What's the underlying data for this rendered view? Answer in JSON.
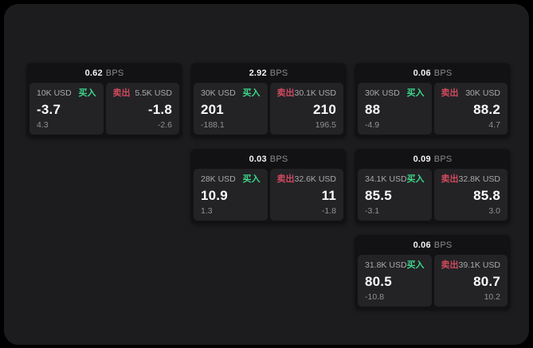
{
  "colors": {
    "background": "#000000",
    "panel": "#1c1c1e",
    "card": "#121214",
    "subpanel": "#232326",
    "buy_green": "#3cd68a",
    "sell_red": "#cf4a5e",
    "primary_text": "#fafafa",
    "muted_text": "#919193"
  },
  "labels": {
    "bps": "BPS",
    "buy": "买入",
    "sell": "卖出"
  },
  "cards": [
    {
      "bps": "0.62",
      "buy": {
        "amount": "10K USD",
        "price": "-3.7",
        "delta": "4.3"
      },
      "sell": {
        "amount": "5.5K USD",
        "price": "-1.8",
        "delta": "-2.6"
      }
    },
    {
      "bps": "2.92",
      "buy": {
        "amount": "30K USD",
        "price": "201",
        "delta": "-188.1"
      },
      "sell": {
        "amount": "30.1K USD",
        "price": "210",
        "delta": "196.5"
      }
    },
    {
      "bps": "0.06",
      "buy": {
        "amount": "30K USD",
        "price": "88",
        "delta": "-4.9"
      },
      "sell": {
        "amount": "30K USD",
        "price": "88.2",
        "delta": "4.7"
      }
    },
    {
      "bps": "0.03",
      "buy": {
        "amount": "28K USD",
        "price": "10.9",
        "delta": "1.3"
      },
      "sell": {
        "amount": "32.6K USD",
        "price": "11",
        "delta": "-1.8"
      }
    },
    {
      "bps": "0.09",
      "buy": {
        "amount": "34.1K USD",
        "price": "85.5",
        "delta": "-3.1"
      },
      "sell": {
        "amount": "32.8K USD",
        "price": "85.8",
        "delta": "3.0"
      }
    },
    {
      "bps": "0.06",
      "buy": {
        "amount": "31.8K USD",
        "price": "80.5",
        "delta": "-10.8"
      },
      "sell": {
        "amount": "39.1K USD",
        "price": "80.7",
        "delta": "10.2"
      }
    }
  ]
}
